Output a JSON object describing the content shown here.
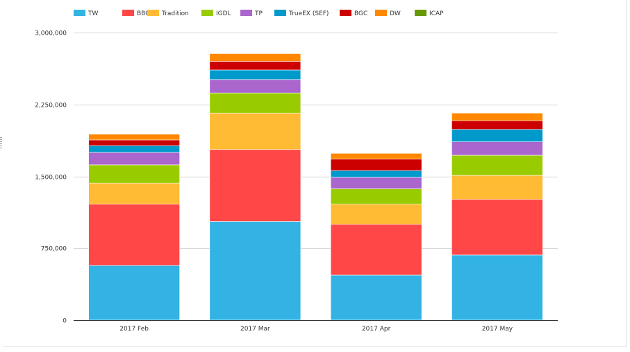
{
  "chart_data": {
    "type": "bar",
    "stacked": true,
    "categories": [
      "2017 Feb",
      "2017 Mar",
      "2017 Apr",
      "2017 May"
    ],
    "ylim": [
      0,
      3000000
    ],
    "yticks": [
      0,
      750000,
      1500000,
      2250000,
      3000000
    ],
    "ytick_labels": [
      "0",
      "750,000",
      "1,500,000",
      "2,250,000",
      "3,000,000"
    ],
    "grid": true,
    "legend_position": "top",
    "series": [
      {
        "name": "TW",
        "color": "#33b3e3",
        "values": [
          570000,
          1030000,
          470000,
          680000
        ]
      },
      {
        "name": "BBG",
        "color": "#ff4747",
        "values": [
          640000,
          750000,
          530000,
          580000
        ]
      },
      {
        "name": "Tradition",
        "color": "#ffbb33",
        "values": [
          220000,
          380000,
          210000,
          250000
        ]
      },
      {
        "name": "IGDL",
        "color": "#99cc00",
        "values": [
          190000,
          210000,
          160000,
          210000
        ]
      },
      {
        "name": "TP",
        "color": "#aa66cc",
        "values": [
          130000,
          140000,
          120000,
          140000
        ]
      },
      {
        "name": "TrueEX (SEF)",
        "color": "#0099cc",
        "values": [
          70000,
          100000,
          70000,
          130000
        ]
      },
      {
        "name": "BGC",
        "color": "#cc0000",
        "values": [
          60000,
          90000,
          120000,
          90000
        ]
      },
      {
        "name": "DW",
        "color": "#ff8800",
        "values": [
          60000,
          80000,
          60000,
          80000
        ]
      },
      {
        "name": "ICAP",
        "color": "#669900",
        "values": [
          0,
          0,
          0,
          0
        ]
      }
    ]
  }
}
